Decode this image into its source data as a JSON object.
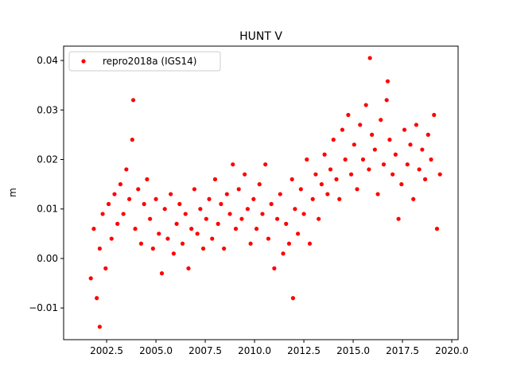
{
  "chart_data": {
    "type": "scatter",
    "title": "HUNT V",
    "ylabel": "m",
    "series": [
      {
        "name": "repro2018a (IGS14)",
        "color": "#ff0000",
        "x": [
          2001.7,
          2001.85,
          2002.0,
          2002.15,
          2002.3,
          2002.45,
          2002.6,
          2002.75,
          2002.9,
          2003.05,
          2003.2,
          2003.35,
          2003.5,
          2003.65,
          2003.8,
          2003.95,
          2004.1,
          2004.25,
          2004.4,
          2004.55,
          2004.7,
          2004.85,
          2005.0,
          2005.15,
          2005.3,
          2005.45,
          2005.6,
          2005.75,
          2005.9,
          2006.05,
          2006.2,
          2006.35,
          2006.5,
          2006.65,
          2006.8,
          2006.95,
          2007.1,
          2007.25,
          2007.4,
          2007.55,
          2007.7,
          2007.85,
          2008.0,
          2008.15,
          2008.3,
          2008.45,
          2008.6,
          2008.75,
          2008.9,
          2009.05,
          2009.2,
          2009.35,
          2009.5,
          2009.65,
          2009.8,
          2009.95,
          2010.1,
          2010.25,
          2010.4,
          2010.55,
          2010.7,
          2010.85,
          2011.0,
          2011.15,
          2011.3,
          2011.45,
          2011.6,
          2011.75,
          2011.9,
          2012.05,
          2012.2,
          2012.35,
          2012.5,
          2012.65,
          2012.8,
          2012.95,
          2013.1,
          2013.25,
          2013.4,
          2013.55,
          2013.7,
          2013.85,
          2014.0,
          2014.15,
          2014.3,
          2014.45,
          2014.6,
          2014.75,
          2014.9,
          2015.05,
          2015.2,
          2015.35,
          2015.5,
          2015.65,
          2015.8,
          2015.95,
          2016.1,
          2016.25,
          2016.4,
          2016.55,
          2016.7,
          2016.85,
          2017.0,
          2017.15,
          2017.3,
          2017.45,
          2017.6,
          2017.75,
          2017.9,
          2018.05,
          2018.2,
          2018.35,
          2018.5,
          2018.65,
          2018.8,
          2018.95,
          2019.1,
          2019.25,
          2019.4,
          2003.85,
          2015.85,
          2002.15,
          2011.95,
          2016.75
        ],
        "values": [
          -0.004,
          0.006,
          -0.008,
          0.002,
          0.009,
          -0.002,
          0.011,
          0.004,
          0.013,
          0.007,
          0.015,
          0.009,
          0.018,
          0.012,
          0.024,
          0.006,
          0.014,
          0.003,
          0.011,
          0.016,
          0.008,
          0.002,
          0.012,
          0.005,
          -0.003,
          0.01,
          0.004,
          0.013,
          0.001,
          0.007,
          0.011,
          0.003,
          0.009,
          -0.002,
          0.006,
          0.014,
          0.005,
          0.01,
          0.002,
          0.008,
          0.012,
          0.004,
          0.016,
          0.007,
          0.011,
          0.002,
          0.013,
          0.009,
          0.019,
          0.006,
          0.014,
          0.008,
          0.017,
          0.01,
          0.003,
          0.012,
          0.006,
          0.015,
          0.009,
          0.019,
          0.004,
          0.011,
          -0.002,
          0.008,
          0.013,
          0.001,
          0.007,
          0.003,
          0.016,
          0.01,
          0.005,
          0.014,
          0.009,
          0.02,
          0.003,
          0.012,
          0.017,
          0.008,
          0.015,
          0.021,
          0.013,
          0.018,
          0.024,
          0.016,
          0.012,
          0.026,
          0.02,
          0.029,
          0.017,
          0.023,
          0.014,
          0.027,
          0.02,
          0.031,
          0.018,
          0.025,
          0.022,
          0.013,
          0.028,
          0.019,
          0.032,
          0.024,
          0.017,
          0.021,
          0.008,
          0.015,
          0.026,
          0.019,
          0.023,
          0.012,
          0.027,
          0.018,
          0.022,
          0.016,
          0.025,
          0.02,
          0.029,
          0.006,
          0.017,
          0.032,
          0.0405,
          -0.0138,
          -0.008,
          0.0358
        ]
      }
    ],
    "xlim": [
      2000.32,
      2020.32
    ],
    "xticks": [
      {
        "value": 2002.5,
        "label": "2002.5"
      },
      {
        "value": 2005,
        "label": "2005.0"
      },
      {
        "value": 2007.5,
        "label": "2007.5"
      },
      {
        "value": 2010,
        "label": "2010.0"
      },
      {
        "value": 2012.5,
        "label": "2012.5"
      },
      {
        "value": 2015,
        "label": "2015.0"
      },
      {
        "value": 2017.5,
        "label": "2017.5"
      },
      {
        "value": 2020,
        "label": "2020.0"
      }
    ],
    "ylim": [
      -0.0164,
      0.0429
    ],
    "yticks": [
      {
        "value": -0.01,
        "label": "−0.01"
      },
      {
        "value": 0,
        "label": "0.00"
      },
      0.01,
      0.02,
      0.03,
      0.04
    ],
    "legend": "upper left",
    "grid": false
  }
}
